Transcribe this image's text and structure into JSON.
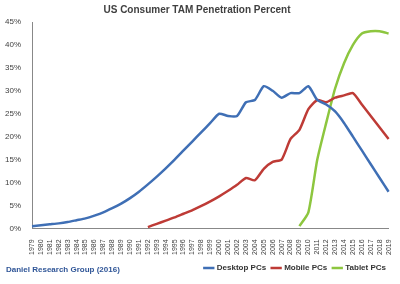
{
  "chart_data": {
    "type": "line",
    "title": "US Consumer TAM Penetration Percent",
    "categories": [
      "1979",
      "1980",
      "1981",
      "1982",
      "1983",
      "1984",
      "1985",
      "1986",
      "1987",
      "1988",
      "1989",
      "1990",
      "1991",
      "1992",
      "1993",
      "1994",
      "1995",
      "1996",
      "1997",
      "1998",
      "1999",
      "2000",
      "2001",
      "2002",
      "2003",
      "2004",
      "2005",
      "2006",
      "2007",
      "2008",
      "2009",
      "2010",
      "2011",
      "2012",
      "2013",
      "2014",
      "2015",
      "2016",
      "2017",
      "2018",
      "2019"
    ],
    "series": [
      {
        "name": "Desktop PCs",
        "color": "#3f6fb5",
        "values": [
          0.5,
          0.7,
          0.9,
          1.1,
          1.4,
          1.8,
          2.2,
          2.8,
          3.5,
          4.4,
          5.4,
          6.6,
          8.0,
          9.6,
          11.3,
          13.1,
          15.0,
          17.0,
          19.0,
          21.0,
          23.0,
          25.0,
          24.5,
          24.5,
          27.5,
          28.0,
          31.0,
          30.0,
          28.5,
          29.5,
          29.5,
          31.0,
          28.0,
          27.0,
          25.5,
          23.0,
          20.0,
          17.0,
          14.0,
          11.0,
          8.0
        ]
      },
      {
        "name": "Mobile PCs",
        "color": "#be3b36",
        "values": [
          null,
          null,
          null,
          null,
          null,
          null,
          null,
          null,
          null,
          null,
          null,
          null,
          null,
          0.3,
          1.0,
          1.7,
          2.4,
          3.2,
          4.0,
          4.9,
          5.9,
          7.0,
          8.2,
          9.5,
          11.0,
          10.5,
          13.0,
          14.5,
          15.0,
          19.5,
          21.5,
          26.0,
          28.0,
          27.5,
          28.5,
          29.0,
          29.5,
          27.0,
          24.5,
          22.0,
          19.5
        ]
      },
      {
        "name": "Tablet PCs",
        "color": "#8dc63f",
        "values": [
          null,
          null,
          null,
          null,
          null,
          null,
          null,
          null,
          null,
          null,
          null,
          null,
          null,
          null,
          null,
          null,
          null,
          null,
          null,
          null,
          null,
          null,
          null,
          null,
          null,
          null,
          null,
          null,
          null,
          null,
          0.5,
          3.5,
          15.0,
          23.0,
          30.5,
          36.0,
          40.0,
          42.5,
          43.0,
          43.0,
          42.5
        ]
      }
    ],
    "ylim": [
      0,
      45
    ],
    "yticks": [
      {
        "value": 0,
        "label": "0%"
      },
      {
        "value": 5,
        "label": "5%"
      },
      {
        "value": 10,
        "label": "10%"
      },
      {
        "value": 15,
        "label": "15%"
      },
      {
        "value": 20,
        "label": "20%"
      },
      {
        "value": 25,
        "label": "25%"
      },
      {
        "value": 30,
        "label": "30%"
      },
      {
        "value": 35,
        "label": "35%"
      },
      {
        "value": 40,
        "label": "40%"
      },
      {
        "value": 45,
        "label": "45%"
      }
    ],
    "annotations": [
      "Daniel Research Group (2016)"
    ],
    "grid": false,
    "legend": "bottom"
  }
}
